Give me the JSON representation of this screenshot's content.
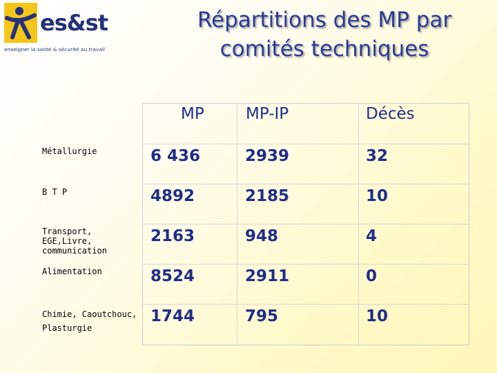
{
  "logo": {
    "name": "es&st",
    "tagline": "enseigner la santé & sécurité au travail"
  },
  "title_line1": "Répartitions des MP par",
  "title_line2": "comités techniques",
  "columns": [
    "MP",
    "MP-IP",
    "Décès"
  ],
  "rows": [
    {
      "label": "Métallurgie",
      "mp": "6 436",
      "mpip": "2939",
      "deces": "32"
    },
    {
      "label": "B T P",
      "mp": "4892",
      "mpip": "2185",
      "deces": "10"
    },
    {
      "label": "Transport, EGE,Livre, communication",
      "mp": "2163",
      "mpip": "948",
      "deces": "4"
    },
    {
      "label": "Alimentation",
      "mp": "8524",
      "mpip": "2911",
      "deces": "0"
    },
    {
      "label": "Chimie, Caoutchouc, Plasturgie",
      "mp": "1744",
      "mpip": "795",
      "deces": "10"
    }
  ],
  "colors": {
    "title": "#2a3a9a",
    "values": "#1f2d8a",
    "logo_yellow": "#f4c61a",
    "logo_blue": "#24317a"
  }
}
